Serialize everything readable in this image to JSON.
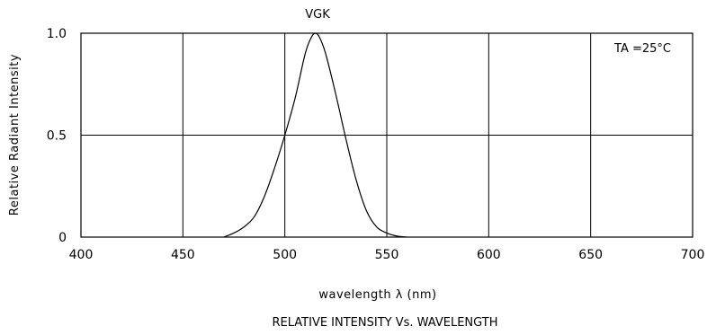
{
  "chart_data": {
    "type": "line",
    "title": "VGK",
    "subtitle": "RELATIVE INTENSITY Vs. WAVELENGTH",
    "xlabel": "wavelength λ (nm)",
    "ylabel": "Relative Radiant Intensity",
    "annotation": "TA =25°C",
    "xlim": [
      400,
      700
    ],
    "ylim": [
      0,
      1.0
    ],
    "x_ticks": [
      400,
      450,
      500,
      550,
      600,
      650,
      700
    ],
    "x_tick_labels": [
      "400",
      "450",
      "500",
      "550",
      "600",
      "650",
      "700"
    ],
    "y_ticks": [
      0,
      0.5,
      1.0
    ],
    "y_tick_labels": [
      "0",
      "0.5",
      "1.0"
    ],
    "grid": true,
    "series": [
      {
        "x": [
          470,
          475,
          480,
          485,
          490,
          495,
          500,
          505,
          510,
          513,
          515,
          517,
          520,
          525,
          530,
          535,
          540,
          545,
          550,
          555,
          560
        ],
        "y": [
          0.0,
          0.02,
          0.05,
          0.1,
          0.2,
          0.34,
          0.5,
          0.68,
          0.9,
          0.98,
          1.0,
          0.98,
          0.9,
          0.7,
          0.48,
          0.28,
          0.13,
          0.05,
          0.02,
          0.005,
          0.0
        ]
      }
    ]
  }
}
